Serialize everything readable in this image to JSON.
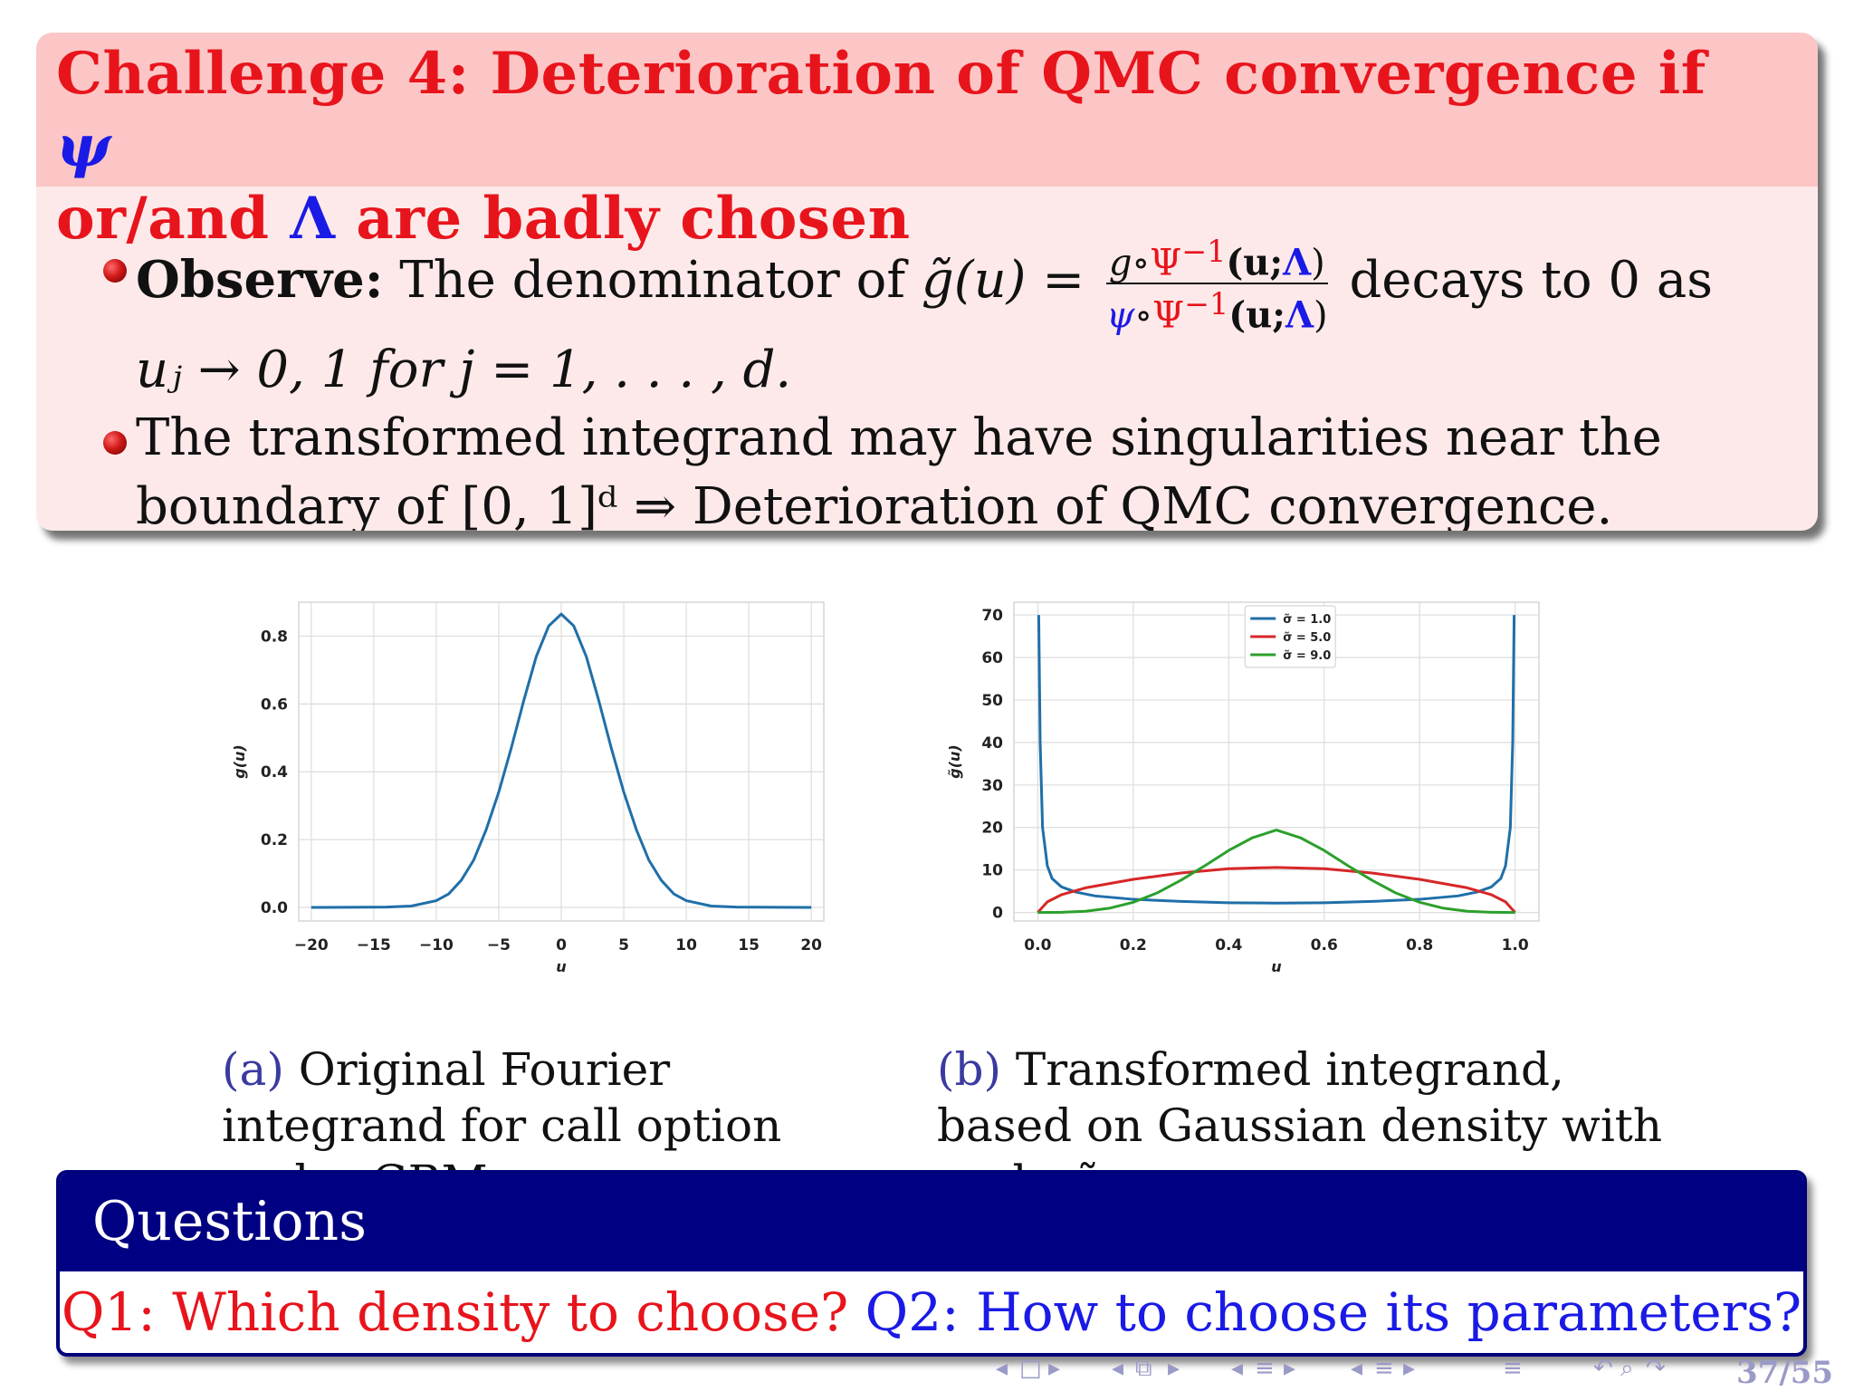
{
  "slide": {
    "title_part1": "Challenge 4: Deterioration of QMC convergence if ",
    "title_psi": "ψ",
    "title_part2": "or/and ",
    "title_lambda": "Λ",
    "title_part3": " are badly chosen",
    "bullet1": {
      "label": "Observe:",
      "text_before": " The denominator of ",
      "g_tilde": "g̃(u)",
      "equals": " = ",
      "num_g": "g",
      "num_circ": "∘",
      "psi_inv": "Ψ",
      "sup": "−1",
      "arg_open": "(u;",
      "arg_lambda": "Λ",
      "arg_close": ")",
      "den_psi": "ψ",
      "text_after": " decays to 0 as",
      "line2": "uⱼ → 0, 1 for j = 1, . . . , d."
    },
    "bullet2": {
      "line1": "The transformed integrand may have singularities near the",
      "line2": "boundary of [0, 1]ᵈ ⇒ Deterioration of QMC convergence."
    }
  },
  "figures": {
    "a": {
      "caption_tag": "(a)",
      "caption": " Original Fourier integrand for call option under GBM"
    },
    "b": {
      "caption_tag": "(b)",
      "caption": " Transformed integrand, based on Gaussian density with scale σ̃."
    }
  },
  "chart_data": [
    {
      "type": "line",
      "xlabel": "u",
      "ylabel": "g(u)",
      "xlim": [
        -21,
        21
      ],
      "ylim": [
        -0.04,
        0.9
      ],
      "xticks": [
        "−20",
        "−15",
        "−10",
        "−5",
        "0",
        "5",
        "10",
        "15",
        "20"
      ],
      "xtick_values": [
        -20,
        -15,
        -10,
        -5,
        0,
        5,
        10,
        15,
        20
      ],
      "yticks": [
        "0.0",
        "0.2",
        "0.4",
        "0.6",
        "0.8"
      ],
      "ytick_values": [
        0,
        0.2,
        0.4,
        0.6,
        0.8
      ],
      "grid": true,
      "series": [
        {
          "color": "#1f6fa8",
          "x": [
            -20,
            -14,
            -12,
            -10,
            -9,
            -8,
            -7,
            -6,
            -5,
            -4,
            -3,
            -2,
            -1,
            0,
            1,
            2,
            3,
            4,
            5,
            6,
            7,
            8,
            9,
            10,
            12,
            14,
            20
          ],
          "y": [
            0,
            0.001,
            0.004,
            0.02,
            0.04,
            0.08,
            0.14,
            0.23,
            0.34,
            0.47,
            0.61,
            0.74,
            0.83,
            0.865,
            0.83,
            0.74,
            0.61,
            0.47,
            0.34,
            0.23,
            0.14,
            0.08,
            0.04,
            0.02,
            0.004,
            0.001,
            0
          ]
        }
      ]
    },
    {
      "type": "line",
      "xlabel": "u",
      "ylabel": "g̃(u)",
      "xlim": [
        -0.05,
        1.05
      ],
      "ylim": [
        -2,
        73
      ],
      "xticks": [
        "0.0",
        "0.2",
        "0.4",
        "0.6",
        "0.8",
        "1.0"
      ],
      "xtick_values": [
        0,
        0.2,
        0.4,
        0.6,
        0.8,
        1.0
      ],
      "yticks": [
        "0",
        "10",
        "20",
        "30",
        "40",
        "50",
        "60",
        "70"
      ],
      "ytick_values": [
        0,
        10,
        20,
        30,
        40,
        50,
        60,
        70
      ],
      "grid": true,
      "legend": "top-center",
      "series": [
        {
          "name": "σ̃ = 1.0",
          "color": "#1f6fa8",
          "x": [
            0.002,
            0.005,
            0.01,
            0.02,
            0.03,
            0.05,
            0.08,
            0.12,
            0.2,
            0.3,
            0.4,
            0.5,
            0.6,
            0.7,
            0.8,
            0.88,
            0.92,
            0.95,
            0.97,
            0.98,
            0.99,
            0.995,
            0.998
          ],
          "y": [
            70,
            40,
            20,
            11,
            8,
            6,
            4.8,
            3.9,
            3.1,
            2.6,
            2.3,
            2.2,
            2.3,
            2.6,
            3.1,
            3.9,
            4.8,
            6,
            8,
            11,
            20,
            40,
            70
          ]
        },
        {
          "name": "σ̃ = 5.0",
          "color": "#d62728",
          "x": [
            0,
            0.02,
            0.05,
            0.1,
            0.2,
            0.3,
            0.4,
            0.5,
            0.6,
            0.7,
            0.8,
            0.9,
            0.95,
            0.98,
            1.0
          ],
          "y": [
            0,
            2.5,
            4.2,
            5.8,
            7.8,
            9.3,
            10.3,
            10.6,
            10.3,
            9.3,
            7.8,
            5.8,
            4.2,
            2.5,
            0
          ]
        },
        {
          "name": "σ̃ = 9.0",
          "color": "#2ca02c",
          "x": [
            0,
            0.05,
            0.1,
            0.15,
            0.2,
            0.25,
            0.3,
            0.35,
            0.4,
            0.45,
            0.5,
            0.55,
            0.6,
            0.65,
            0.7,
            0.75,
            0.8,
            0.85,
            0.9,
            0.95,
            1.0
          ],
          "y": [
            0,
            0.05,
            0.3,
            1.0,
            2.4,
            4.6,
            7.6,
            11.0,
            14.6,
            17.6,
            19.4,
            17.6,
            14.6,
            11.0,
            7.6,
            4.6,
            2.4,
            1.0,
            0.3,
            0.05,
            0
          ]
        }
      ]
    }
  ],
  "questions": {
    "title": "Questions",
    "q1": "Q1: Which density to choose?",
    "q2": "Q2: How to choose its parameters?"
  },
  "nav": {
    "page": "37/55"
  },
  "colors": {
    "alert_title": "#e8141c",
    "math_blue": "#1a1ae6",
    "block_header": "#000082"
  }
}
